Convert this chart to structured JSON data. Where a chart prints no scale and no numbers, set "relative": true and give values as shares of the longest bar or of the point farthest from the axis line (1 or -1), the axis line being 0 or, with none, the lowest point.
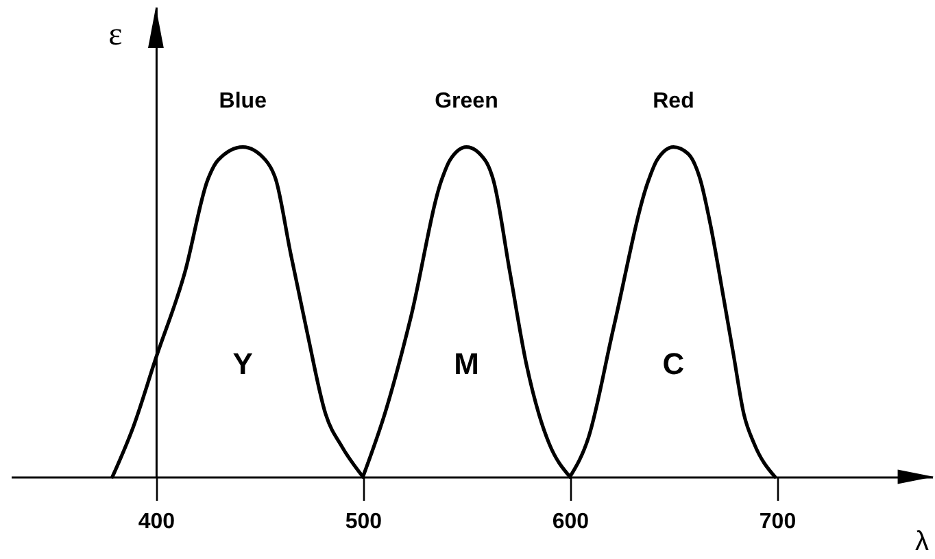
{
  "chart_data": {
    "type": "line",
    "relative": true,
    "xlabel": "λ",
    "ylabel": "ε",
    "xlim": [
      330,
      775
    ],
    "xticks": [
      400,
      500,
      600,
      700
    ],
    "series": [
      {
        "name": "Y",
        "color": "#000000",
        "x": [
          379,
          389,
          400,
          414,
          425,
          430,
          442,
          453,
          458,
          465,
          473,
          482,
          490,
          500
        ],
        "values": [
          0,
          0.15,
          0.36,
          0.62,
          0.9,
          0.96,
          1.0,
          0.96,
          0.9,
          0.68,
          0.44,
          0.19,
          0.09,
          0
        ]
      },
      {
        "name": "M",
        "color": "#000000",
        "x": [
          500,
          511,
          523,
          538,
          542,
          550,
          559,
          563,
          571,
          579,
          585,
          590,
          600
        ],
        "values": [
          0,
          0.2,
          0.48,
          0.9,
          0.96,
          1.0,
          0.96,
          0.9,
          0.62,
          0.34,
          0.19,
          0.1,
          0
        ]
      },
      {
        "name": "C",
        "color": "#000000",
        "x": [
          600,
          609,
          621,
          638,
          642,
          650,
          657,
          663,
          668,
          674,
          679,
          684,
          689,
          699
        ],
        "values": [
          0,
          0.12,
          0.45,
          0.9,
          0.96,
          1.0,
          0.98,
          0.9,
          0.76,
          0.55,
          0.37,
          0.19,
          0.1,
          0
        ]
      }
    ],
    "annotations": [
      "Blue",
      "Green",
      "Red"
    ]
  }
}
